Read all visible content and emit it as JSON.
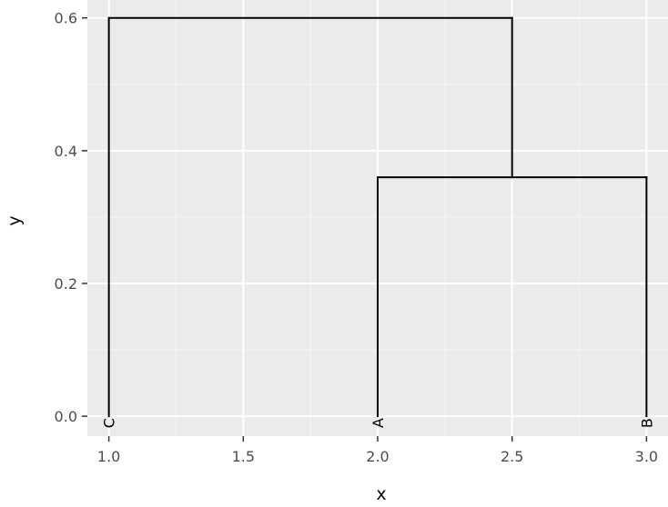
{
  "chart_data": {
    "type": "dendrogram",
    "title": "",
    "xlabel": "x",
    "ylabel": "y",
    "xlim": [
      0.92,
      3.08
    ],
    "ylim": [
      -0.03,
      0.627
    ],
    "x_ticks": [
      1.0,
      1.5,
      2.0,
      2.5,
      3.0
    ],
    "x_tick_labels": [
      "1.0",
      "1.5",
      "2.0",
      "2.5",
      "3.0"
    ],
    "y_ticks": [
      0.0,
      0.2,
      0.4,
      0.6
    ],
    "y_tick_labels": [
      "0.0",
      "0.2",
      "0.4",
      "0.6"
    ],
    "grid": true,
    "leaves": [
      {
        "label": "C",
        "x": 1.0,
        "y": 0.0
      },
      {
        "label": "A",
        "x": 2.0,
        "y": 0.0
      },
      {
        "label": "B",
        "x": 3.0,
        "y": 0.0
      }
    ],
    "segments": [
      {
        "x": 2.0,
        "y": 0.0,
        "xend": 2.0,
        "yend": 0.36
      },
      {
        "x": 3.0,
        "y": 0.0,
        "xend": 3.0,
        "yend": 0.36
      },
      {
        "x": 2.0,
        "y": 0.36,
        "xend": 3.0,
        "yend": 0.36
      },
      {
        "x": 2.5,
        "y": 0.36,
        "xend": 2.5,
        "yend": 0.6
      },
      {
        "x": 1.0,
        "y": 0.0,
        "xend": 1.0,
        "yend": 0.6
      },
      {
        "x": 1.0,
        "y": 0.6,
        "xend": 2.5,
        "yend": 0.6
      }
    ],
    "colors": {
      "panel_background": "#ebebeb",
      "grid_major": "#ffffff",
      "grid_minor": "#f5f5f5",
      "segment": "#000000",
      "tick": "#333333"
    }
  }
}
